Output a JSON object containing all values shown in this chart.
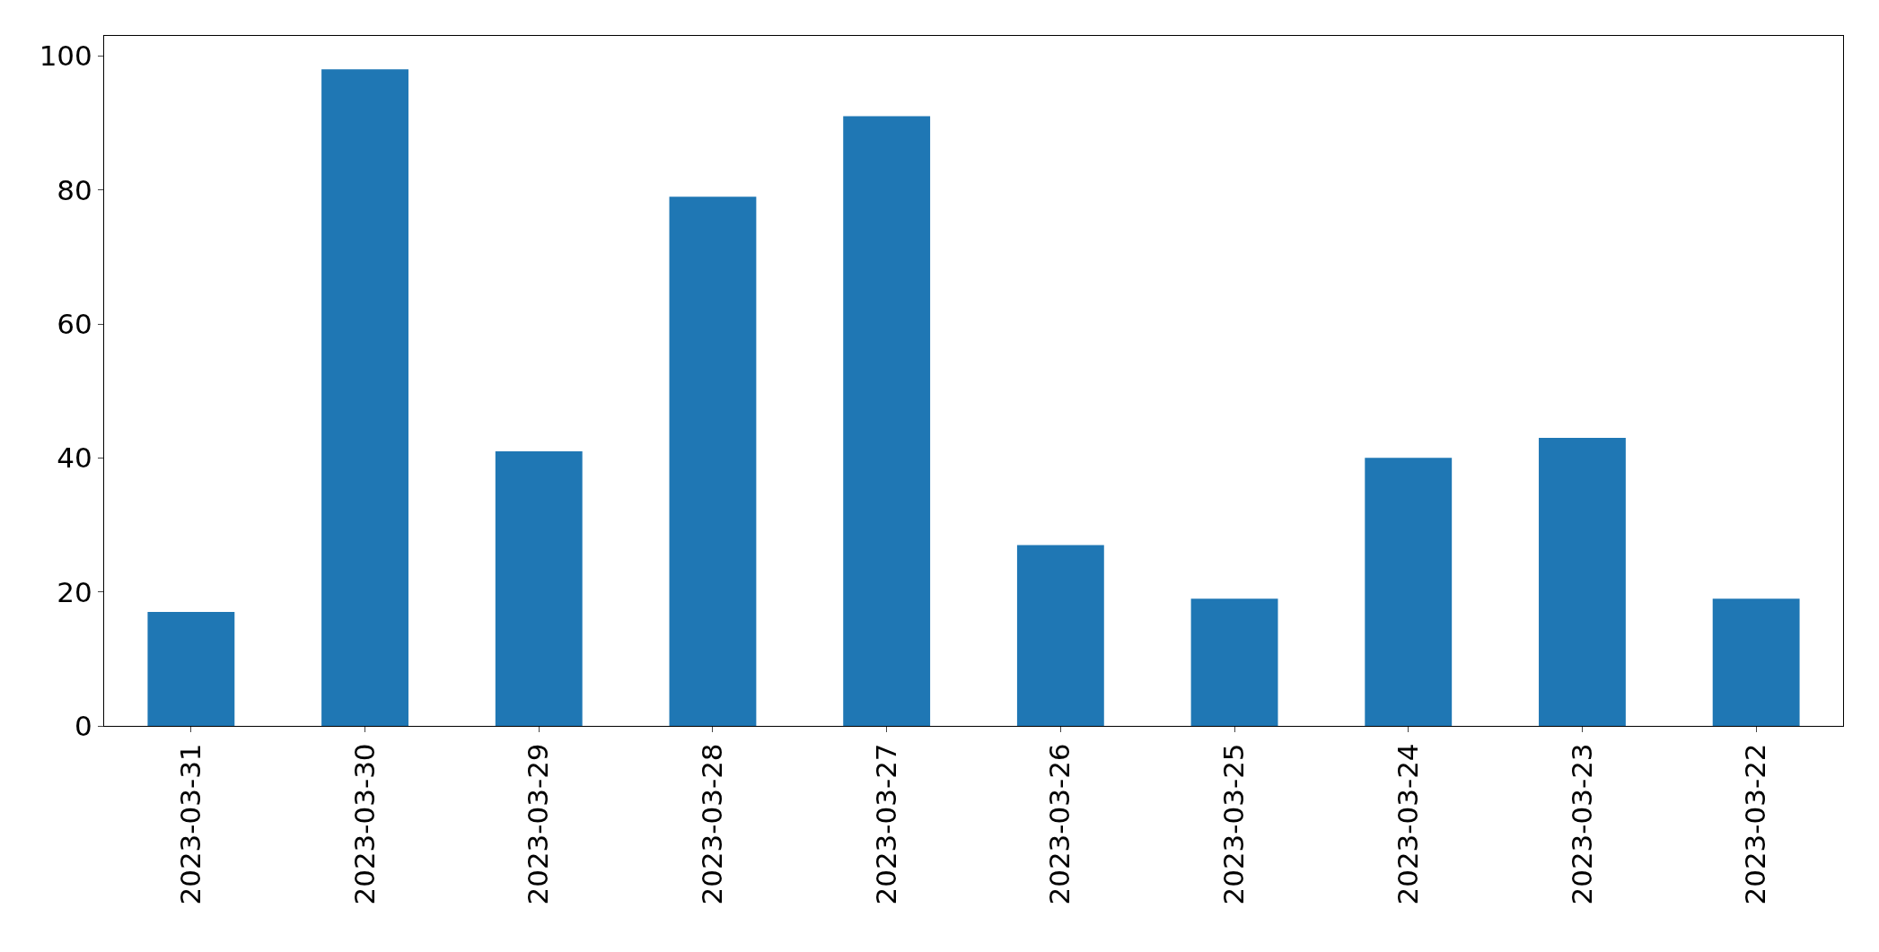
{
  "chart_data": {
    "type": "bar",
    "categories": [
      "2023-03-31",
      "2023-03-30",
      "2023-03-29",
      "2023-03-28",
      "2023-03-27",
      "2023-03-26",
      "2023-03-25",
      "2023-03-24",
      "2023-03-23",
      "2023-03-22"
    ],
    "values": [
      17,
      98,
      41,
      79,
      91,
      27,
      19,
      40,
      43,
      19
    ],
    "color": "#1f77b4",
    "ylim": [
      0,
      103
    ],
    "yticks": [
      0,
      20,
      40,
      60,
      80,
      100
    ],
    "grid": false
  }
}
